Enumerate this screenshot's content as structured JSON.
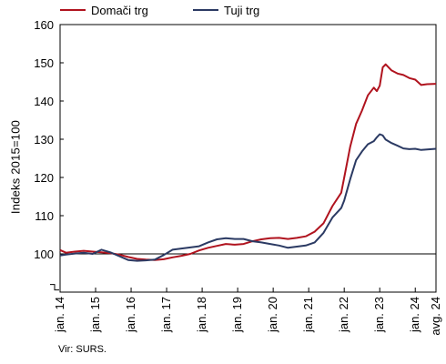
{
  "chart_data": {
    "type": "line",
    "title": "",
    "ylabel": "Indeks 2015=100",
    "xlabel": "",
    "ylim": [
      90,
      160
    ],
    "yticks": [
      160,
      150,
      140,
      130,
      120,
      110,
      100
    ],
    "baseline": 100,
    "ytick_labels_visible": [
      "160",
      "150",
      "140",
      "130",
      "120",
      "110",
      "100"
    ],
    "x_start": "2014-01",
    "x_end": "2024-08",
    "x_tick_labels": [
      "jan. 14",
      "jan. 15",
      "jan. 16",
      "jan. 17",
      "jan. 18",
      "jan. 19",
      "jan. 20",
      "jan. 21",
      "jan. 22",
      "jan. 23",
      "jan. 24",
      "avg. 24"
    ],
    "axis_break": true,
    "legend_position": "top",
    "grid": false,
    "series": [
      {
        "name": "Domači trg",
        "color": "#b0131e",
        "points": [
          [
            "2014-01",
            101.0
          ],
          [
            "2014-03",
            100.3
          ],
          [
            "2014-06",
            100.6
          ],
          [
            "2014-09",
            100.8
          ],
          [
            "2014-12",
            100.6
          ],
          [
            "2015-03",
            100.4
          ],
          [
            "2015-06",
            100.2
          ],
          [
            "2015-09",
            99.8
          ],
          [
            "2015-12",
            99.2
          ],
          [
            "2016-03",
            98.7
          ],
          [
            "2016-06",
            98.5
          ],
          [
            "2016-09",
            98.4
          ],
          [
            "2016-12",
            98.6
          ],
          [
            "2017-03",
            99.1
          ],
          [
            "2017-06",
            99.5
          ],
          [
            "2017-09",
            100.0
          ],
          [
            "2017-12",
            100.9
          ],
          [
            "2018-03",
            101.6
          ],
          [
            "2018-06",
            102.1
          ],
          [
            "2018-09",
            102.6
          ],
          [
            "2018-12",
            102.4
          ],
          [
            "2019-03",
            102.6
          ],
          [
            "2019-06",
            103.3
          ],
          [
            "2019-09",
            103.8
          ],
          [
            "2019-12",
            104.1
          ],
          [
            "2020-03",
            104.2
          ],
          [
            "2020-06",
            103.9
          ],
          [
            "2020-09",
            104.2
          ],
          [
            "2020-12",
            104.6
          ],
          [
            "2021-03",
            105.8
          ],
          [
            "2021-06",
            108.0
          ],
          [
            "2021-09",
            112.5
          ],
          [
            "2021-12",
            116.0
          ],
          [
            "2022-01",
            120.0
          ],
          [
            "2022-03",
            128.0
          ],
          [
            "2022-05",
            134.0
          ],
          [
            "2022-07",
            137.5
          ],
          [
            "2022-09",
            141.5
          ],
          [
            "2022-11",
            143.5
          ],
          [
            "2022-12",
            142.6
          ],
          [
            "2023-01",
            144.0
          ],
          [
            "2023-02",
            148.8
          ],
          [
            "2023-03",
            149.6
          ],
          [
            "2023-05",
            148.0
          ],
          [
            "2023-07",
            147.2
          ],
          [
            "2023-09",
            146.8
          ],
          [
            "2023-11",
            146.0
          ],
          [
            "2024-01",
            145.6
          ],
          [
            "2024-03",
            144.2
          ],
          [
            "2024-05",
            144.4
          ],
          [
            "2024-08",
            144.5
          ]
        ]
      },
      {
        "name": "Tuji trg",
        "color": "#2b3a63",
        "points": [
          [
            "2014-01",
            99.6
          ],
          [
            "2014-03",
            99.8
          ],
          [
            "2014-06",
            100.1
          ],
          [
            "2014-09",
            100.3
          ],
          [
            "2014-12",
            100.0
          ],
          [
            "2015-03",
            101.1
          ],
          [
            "2015-06",
            100.4
          ],
          [
            "2015-09",
            99.4
          ],
          [
            "2015-12",
            98.4
          ],
          [
            "2016-03",
            98.2
          ],
          [
            "2016-06",
            98.3
          ],
          [
            "2016-09",
            98.5
          ],
          [
            "2016-12",
            99.7
          ],
          [
            "2017-03",
            101.1
          ],
          [
            "2017-06",
            101.4
          ],
          [
            "2017-09",
            101.7
          ],
          [
            "2017-12",
            102.0
          ],
          [
            "2018-03",
            103.0
          ],
          [
            "2018-06",
            103.8
          ],
          [
            "2018-09",
            104.1
          ],
          [
            "2018-12",
            103.9
          ],
          [
            "2019-03",
            103.9
          ],
          [
            "2019-06",
            103.3
          ],
          [
            "2019-09",
            103.0
          ],
          [
            "2019-12",
            102.6
          ],
          [
            "2020-03",
            102.2
          ],
          [
            "2020-06",
            101.6
          ],
          [
            "2020-09",
            101.9
          ],
          [
            "2020-12",
            102.2
          ],
          [
            "2021-03",
            103.0
          ],
          [
            "2021-06",
            105.5
          ],
          [
            "2021-09",
            109.5
          ],
          [
            "2021-12",
            112.0
          ],
          [
            "2022-01",
            114.0
          ],
          [
            "2022-03",
            119.5
          ],
          [
            "2022-05",
            124.5
          ],
          [
            "2022-07",
            126.8
          ],
          [
            "2022-09",
            128.7
          ],
          [
            "2022-11",
            129.5
          ],
          [
            "2022-12",
            130.5
          ],
          [
            "2023-01",
            131.3
          ],
          [
            "2023-02",
            131.0
          ],
          [
            "2023-03",
            129.9
          ],
          [
            "2023-05",
            129.0
          ],
          [
            "2023-07",
            128.3
          ],
          [
            "2023-09",
            127.6
          ],
          [
            "2023-11",
            127.4
          ],
          [
            "2024-01",
            127.5
          ],
          [
            "2024-03",
            127.2
          ],
          [
            "2024-05",
            127.3
          ],
          [
            "2024-08",
            127.5
          ]
        ]
      }
    ]
  },
  "legend": [
    {
      "label": "Domači trg",
      "color": "#b0131e"
    },
    {
      "label": "Tuji trg",
      "color": "#2b3a63"
    }
  ],
  "source": "Vir: SURS."
}
